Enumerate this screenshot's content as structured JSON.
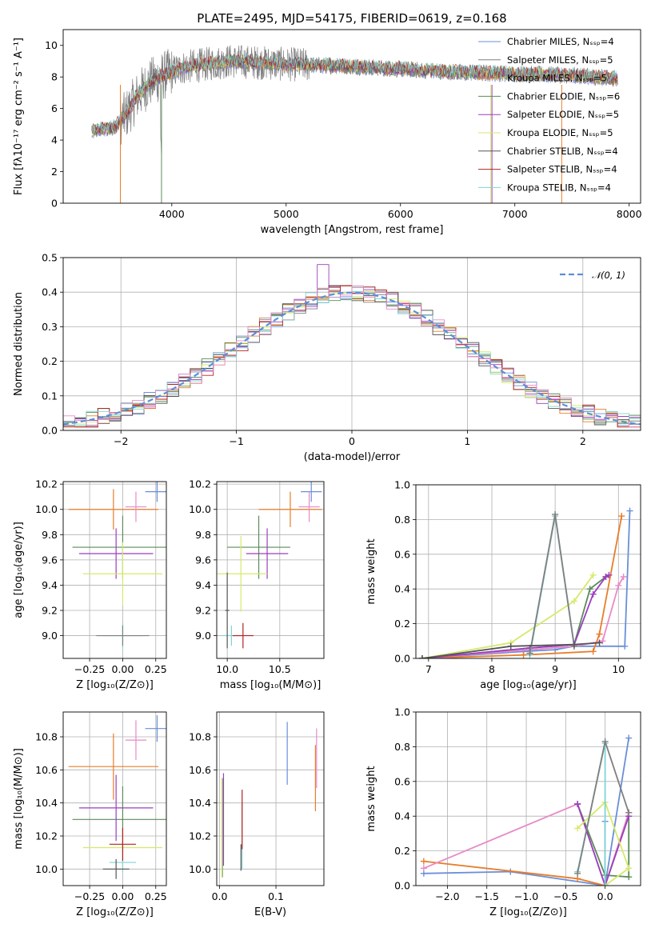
{
  "chart_data": [
    {
      "id": "spectrum",
      "type": "line",
      "title": "PLATE=2495, MJD=54175, FIBERID=0619, z=0.168",
      "xlabel": "wavelength [Angstrom, rest frame]",
      "ylabel": "Flux [fλ10⁻¹⁷ erg cm⁻² s⁻¹ A⁻¹]",
      "xlim": [
        3050,
        8100
      ],
      "ylim": [
        0,
        11
      ],
      "xticks": [
        4000,
        5000,
        6000,
        7000,
        8000
      ],
      "yticks": [
        0,
        2,
        4,
        6,
        8,
        10
      ],
      "grid": false,
      "legend_position": "top-right",
      "series": [
        {
          "name": "Chabrier MILES, Nₛₛₚ=4",
          "color": "#6a8fd8"
        },
        {
          "name": "Salpeter MILES, Nₛₛₚ=5",
          "color": "#7f7f7f"
        },
        {
          "name": "Kroupa MILES, Nₛₛₚ=5",
          "color": "#e87d2a"
        },
        {
          "name": "Chabrier ELODIE, Nₛₛₚ=6",
          "color": "#5b8c5a"
        },
        {
          "name": "Salpeter ELODIE, Nₛₛₚ=5",
          "color": "#9b3fbf"
        },
        {
          "name": "Kroupa ELODIE, Nₛₛₚ=5",
          "color": "#d6e96a"
        },
        {
          "name": "Chabrier STELIB, Nₛₛₚ=4",
          "color": "#555555"
        },
        {
          "name": "Salpeter STELIB, Nₛₛₚ=4",
          "color": "#b22222"
        },
        {
          "name": "Kroupa STELIB, Nₛₛₚ=4",
          "color": "#7fd4d4"
        }
      ],
      "data_envelope": {
        "x": [
          3300,
          3500,
          3600,
          3700,
          3800,
          3900,
          4000,
          4100,
          4300,
          4500,
          4800,
          5000,
          5500,
          6000,
          6500,
          7000,
          7500,
          7900
        ],
        "y": [
          4.6,
          4.8,
          5.6,
          6.8,
          7.6,
          8.0,
          8.3,
          8.6,
          8.8,
          9.0,
          8.9,
          8.8,
          8.7,
          8.5,
          8.3,
          8.2,
          8.1,
          7.9
        ]
      }
    },
    {
      "id": "residuals",
      "type": "line",
      "xlabel": "(data-model)/error",
      "ylabel": "Normed distribution",
      "xlim": [
        -2.5,
        2.5
      ],
      "ylim": [
        0,
        0.5
      ],
      "xticks": [
        -2,
        -1,
        0,
        1,
        2
      ],
      "xtick_labels": [
        "−2",
        "−1",
        "0",
        "1",
        "2"
      ],
      "yticks": [
        0.0,
        0.1,
        0.2,
        0.3,
        0.4,
        0.5
      ],
      "ytick_labels": [
        "0.0",
        "0.1",
        "0.2",
        "0.3",
        "0.4",
        "0.5"
      ],
      "grid": true,
      "legend_position": "top-right",
      "gaussian": {
        "name": "𝒩(0, 1)",
        "color": "#5b8fd9",
        "mu": 0,
        "sigma": 1
      },
      "histogram_bins": [
        -2.5,
        -2.4,
        -2.3,
        -2.2,
        -2.1,
        -2.0,
        -1.9,
        -1.8,
        -1.7,
        -1.6,
        -1.5,
        -1.4,
        -1.3,
        -1.2,
        -1.1,
        -1.0,
        -0.9,
        -0.8,
        -0.7,
        -0.6,
        -0.5,
        -0.4,
        -0.3,
        -0.2,
        -0.1,
        0.0,
        0.1,
        0.2,
        0.3,
        0.4,
        0.5,
        0.6,
        0.7,
        0.8,
        0.9,
        1.0,
        1.1,
        1.2,
        1.3,
        1.4,
        1.5,
        1.6,
        1.7,
        1.8,
        1.9,
        2.0,
        2.1,
        2.2,
        2.3,
        2.4,
        2.5
      ]
    },
    {
      "id": "age-vs-Z",
      "type": "scatter",
      "xlabel": "Z [log₁₀(Z/Z⊙)]",
      "ylabel": "age  [log₁₀(age/yr)]",
      "xlim": [
        -0.45,
        0.33
      ],
      "ylim": [
        8.82,
        10.22
      ],
      "xticks": [
        -0.25,
        0.0,
        0.25
      ],
      "xtick_labels": [
        "−0.25",
        "0.00",
        "0.25"
      ],
      "yticks": [
        9.0,
        9.2,
        9.4,
        9.6,
        9.8,
        10.0,
        10.2
      ],
      "ytick_labels": [
        "9.0",
        "9.2",
        "9.4",
        "9.6",
        "9.8",
        "10.0",
        "10.2"
      ],
      "grid": true,
      "points": [
        {
          "x": 0.26,
          "y": 10.14,
          "xerr": 0.09,
          "yerr": 0.08,
          "color": "#6a8fd8"
        },
        {
          "x": -0.07,
          "y": 10.0,
          "xerr": 0.34,
          "yerr": 0.16,
          "color": "#e87d2a"
        },
        {
          "x": 0.1,
          "y": 10.02,
          "xerr": 0.08,
          "yerr": 0.12,
          "color": "#e88ac8"
        },
        {
          "x": 0.0,
          "y": 9.7,
          "xerr": 0.38,
          "yerr": 0.25,
          "color": "#5b8c5a"
        },
        {
          "x": -0.05,
          "y": 9.65,
          "xerr": 0.28,
          "yerr": 0.2,
          "color": "#9b3fbf"
        },
        {
          "x": 0.0,
          "y": 9.49,
          "xerr": 0.3,
          "yerr": 0.25,
          "color": "#d6e96a"
        },
        {
          "x": 0.0,
          "y": 9.0,
          "xerr": 0.15,
          "yerr": 0.1,
          "color": "#7fd4d4"
        },
        {
          "x": 0.0,
          "y": 9.0,
          "xerr": 0.2,
          "yerr": 0.08,
          "color": "#7f7f7f"
        }
      ]
    },
    {
      "id": "age-vs-mass",
      "type": "scatter",
      "xlabel": "mass [log₁₀(M/M⊙)]",
      "ylabel": "",
      "xlim": [
        9.9,
        10.92
      ],
      "ylim": [
        8.82,
        10.22
      ],
      "xticks": [
        10.0,
        10.5
      ],
      "xtick_labels": [
        "10.0",
        "10.5"
      ],
      "yticks": [
        9.0,
        9.2,
        9.4,
        9.6,
        9.8,
        10.0,
        10.2
      ],
      "ytick_labels": [
        "9.0",
        "9.2",
        "9.4",
        "9.6",
        "9.8",
        "10.0",
        "10.2"
      ],
      "grid": true,
      "points": [
        {
          "x": 10.8,
          "y": 10.14,
          "xerr": 0.1,
          "yerr": 0.08,
          "color": "#6a8fd8"
        },
        {
          "x": 10.6,
          "y": 10.0,
          "xerr": 0.3,
          "yerr": 0.14,
          "color": "#e87d2a"
        },
        {
          "x": 10.78,
          "y": 10.02,
          "xerr": 0.1,
          "yerr": 0.12,
          "color": "#e88ac8"
        },
        {
          "x": 10.3,
          "y": 9.7,
          "xerr": 0.3,
          "yerr": 0.25,
          "color": "#5b8c5a"
        },
        {
          "x": 10.38,
          "y": 9.65,
          "xerr": 0.2,
          "yerr": 0.2,
          "color": "#9b3fbf"
        },
        {
          "x": 10.13,
          "y": 9.49,
          "xerr": 0.25,
          "yerr": 0.3,
          "color": "#d6e96a"
        },
        {
          "x": 10.04,
          "y": 9.0,
          "xerr": 0.1,
          "yerr": 0.08,
          "color": "#7fd4d4"
        },
        {
          "x": 10.15,
          "y": 9.0,
          "xerr": 0.1,
          "yerr": 0.1,
          "color": "#b22222"
        },
        {
          "x": 10.0,
          "y": 9.2,
          "xerr": 0.02,
          "yerr": 0.3,
          "color": "#555555"
        }
      ]
    },
    {
      "id": "massweight-vs-age",
      "type": "line",
      "xlabel": "age  [log₁₀(age/yr)]",
      "ylabel": "mass weight",
      "xlim": [
        6.8,
        10.35
      ],
      "ylim": [
        0,
        1
      ],
      "xticks": [
        7,
        8,
        9,
        10
      ],
      "xtick_labels": [
        "7",
        "8",
        "9",
        "10"
      ],
      "yticks": [
        0.0,
        0.2,
        0.4,
        0.6,
        0.8,
        1.0
      ],
      "ytick_labels": [
        "0.0",
        "0.2",
        "0.4",
        "0.6",
        "0.8",
        "1.0"
      ],
      "grid": true,
      "series": [
        {
          "color": "#6a8fd8",
          "x": [
            6.9,
            8.5,
            9.0,
            9.3,
            10.1,
            10.18
          ],
          "y": [
            0.0,
            0.04,
            0.05,
            0.07,
            0.07,
            0.85
          ]
        },
        {
          "color": "#e87d2a",
          "x": [
            6.9,
            8.5,
            9.6,
            9.7,
            10.05
          ],
          "y": [
            0.0,
            0.02,
            0.04,
            0.14,
            0.82
          ]
        },
        {
          "color": "#e88ac8",
          "x": [
            6.9,
            8.6,
            9.3,
            9.75,
            10.0,
            10.08
          ],
          "y": [
            0.0,
            0.05,
            0.07,
            0.1,
            0.42,
            0.47
          ]
        },
        {
          "color": "#5b8c5a",
          "x": [
            6.9,
            8.6,
            9.3,
            9.55,
            9.8
          ],
          "y": [
            0.0,
            0.06,
            0.08,
            0.4,
            0.47
          ]
        },
        {
          "color": "#9b3fbf",
          "x": [
            6.9,
            8.6,
            9.3,
            9.6,
            9.8,
            9.85
          ],
          "y": [
            0.0,
            0.06,
            0.08,
            0.37,
            0.47,
            0.48
          ]
        },
        {
          "color": "#d6e96a",
          "x": [
            6.9,
            8.3,
            9.3,
            9.6
          ],
          "y": [
            0.0,
            0.09,
            0.33,
            0.48
          ]
        },
        {
          "color": "#7fd4d4",
          "x": [
            8.6,
            9.0,
            9.3
          ],
          "y": [
            0.02,
            0.82,
            0.08
          ]
        },
        {
          "color": "#7f7f7f",
          "x": [
            8.6,
            9.0,
            9.3
          ],
          "y": [
            0.03,
            0.83,
            0.07
          ]
        },
        {
          "color": "#555555",
          "x": [
            6.9,
            8.3,
            9.3,
            9.7
          ],
          "y": [
            0.0,
            0.07,
            0.08,
            0.09
          ]
        }
      ]
    },
    {
      "id": "mass-vs-Z",
      "type": "scatter",
      "xlabel": "Z [log₁₀(Z/Z⊙)]",
      "ylabel": "mass [log₁₀(M/M⊙)]",
      "xlim": [
        -0.45,
        0.33
      ],
      "ylim": [
        9.9,
        10.95
      ],
      "xticks": [
        -0.25,
        0.0,
        0.25
      ],
      "xtick_labels": [
        "−0.25",
        "0.00",
        "0.25"
      ],
      "yticks": [
        10.0,
        10.2,
        10.4,
        10.6,
        10.8
      ],
      "ytick_labels": [
        "10.0",
        "10.2",
        "10.4",
        "10.6",
        "10.8"
      ],
      "grid": true,
      "points": [
        {
          "x": 0.26,
          "y": 10.85,
          "xerr": 0.09,
          "yerr": 0.08,
          "color": "#6a8fd8"
        },
        {
          "x": -0.07,
          "y": 10.62,
          "xerr": 0.34,
          "yerr": 0.2,
          "color": "#e87d2a"
        },
        {
          "x": 0.1,
          "y": 10.78,
          "xerr": 0.08,
          "yerr": 0.12,
          "color": "#e88ac8"
        },
        {
          "x": 0.0,
          "y": 10.3,
          "xerr": 0.38,
          "yerr": 0.2,
          "color": "#5b8c5a"
        },
        {
          "x": -0.05,
          "y": 10.37,
          "xerr": 0.28,
          "yerr": 0.2,
          "color": "#9b3fbf"
        },
        {
          "x": 0.0,
          "y": 10.13,
          "xerr": 0.3,
          "yerr": 0.12,
          "color": "#d6e96a"
        },
        {
          "x": 0.0,
          "y": 10.04,
          "xerr": 0.1,
          "yerr": 0.06,
          "color": "#7fd4d4"
        },
        {
          "x": 0.0,
          "y": 10.15,
          "xerr": 0.1,
          "yerr": 0.1,
          "color": "#b22222"
        },
        {
          "x": -0.05,
          "y": 10.0,
          "xerr": 0.1,
          "yerr": 0.06,
          "color": "#555555"
        }
      ]
    },
    {
      "id": "mass-vs-ebv",
      "type": "scatter",
      "xlabel": "E(B-V)",
      "ylabel": "",
      "xlim": [
        -0.005,
        0.185
      ],
      "ylim": [
        9.9,
        10.95
      ],
      "xticks": [
        0.0,
        0.1
      ],
      "xtick_labels": [
        "0.0",
        "0.1"
      ],
      "yticks": [
        10.0,
        10.2,
        10.4,
        10.6,
        10.8
      ],
      "ytick_labels": [
        "10.0",
        "10.2",
        "10.4",
        "10.6",
        "10.8"
      ],
      "grid": true,
      "points": [
        {
          "x": 0.12,
          "y": 10.7,
          "xerr": 0,
          "yerr": 0.19,
          "color": "#6a8fd8"
        },
        {
          "x": 0.17,
          "y": 10.55,
          "xerr": 0,
          "yerr": 0.2,
          "color": "#e87d2a"
        },
        {
          "x": 0.172,
          "y": 10.67,
          "xerr": 0,
          "yerr": 0.18,
          "color": "#e88ac8"
        },
        {
          "x": 0.005,
          "y": 10.25,
          "xerr": 0,
          "yerr": 0.3,
          "color": "#5b8c5a"
        },
        {
          "x": 0.007,
          "y": 10.3,
          "xerr": 0,
          "yerr": 0.28,
          "color": "#9b3fbf"
        },
        {
          "x": 0.004,
          "y": 10.25,
          "xerr": 0,
          "yerr": 0.3,
          "color": "#d6e96a"
        },
        {
          "x": 0.04,
          "y": 10.2,
          "xerr": 0,
          "yerr": 0.2,
          "color": "#7fd4d4"
        },
        {
          "x": 0.04,
          "y": 10.3,
          "xerr": 0,
          "yerr": 0.18,
          "color": "#b22222"
        },
        {
          "x": 0.038,
          "y": 10.07,
          "xerr": 0,
          "yerr": 0.08,
          "color": "#555555"
        }
      ]
    },
    {
      "id": "massweight-vs-Z",
      "type": "line",
      "xlabel": "Z [log₁₀(Z/Z⊙)]",
      "ylabel": "mass weight",
      "xlim": [
        -2.4,
        0.45
      ],
      "ylim": [
        0,
        1
      ],
      "xticks": [
        -2.0,
        -1.5,
        -1.0,
        -0.5,
        0.0
      ],
      "xtick_labels": [
        "−2.0",
        "−1.5",
        "−1.0",
        "−0.5",
        "0.0"
      ],
      "yticks": [
        0.0,
        0.2,
        0.4,
        0.6,
        0.8,
        1.0
      ],
      "ytick_labels": [
        "0.0",
        "0.2",
        "0.4",
        "0.6",
        "0.8",
        "1.0"
      ],
      "grid": true,
      "series": [
        {
          "color": "#6a8fd8",
          "x": [
            -2.3,
            -1.2,
            0.0,
            0.0,
            0.0,
            0.3
          ],
          "y": [
            0.07,
            0.08,
            0.0,
            0.37,
            0.0,
            0.85
          ]
        },
        {
          "color": "#e87d2a",
          "x": [
            -2.3,
            -0.35,
            0.0,
            0.3
          ],
          "y": [
            0.14,
            0.04,
            0.0,
            0.42
          ]
        },
        {
          "color": "#e88ac8",
          "x": [
            -2.3,
            -0.35,
            0.0,
            0.3
          ],
          "y": [
            0.1,
            0.47,
            0.0,
            0.42
          ]
        },
        {
          "color": "#5b8c5a",
          "x": [
            -0.35,
            0.0,
            0.3,
            0.3
          ],
          "y": [
            0.47,
            0.06,
            0.05,
            0.4
          ]
        },
        {
          "color": "#9b3fbf",
          "x": [
            -0.35,
            0.0,
            0.3
          ],
          "y": [
            0.47,
            0.0,
            0.4
          ]
        },
        {
          "color": "#d6e96a",
          "x": [
            -0.35,
            0.0,
            0.3,
            0.0
          ],
          "y": [
            0.33,
            0.48,
            0.1,
            0.0
          ]
        },
        {
          "color": "#7fd4d4",
          "x": [
            -0.35,
            0.0,
            0.0
          ],
          "y": [
            0.08,
            0.82,
            0.0
          ]
        },
        {
          "color": "#7f7f7f",
          "x": [
            -0.35,
            0.0,
            0.3
          ],
          "y": [
            0.07,
            0.83,
            0.42
          ]
        }
      ]
    }
  ]
}
